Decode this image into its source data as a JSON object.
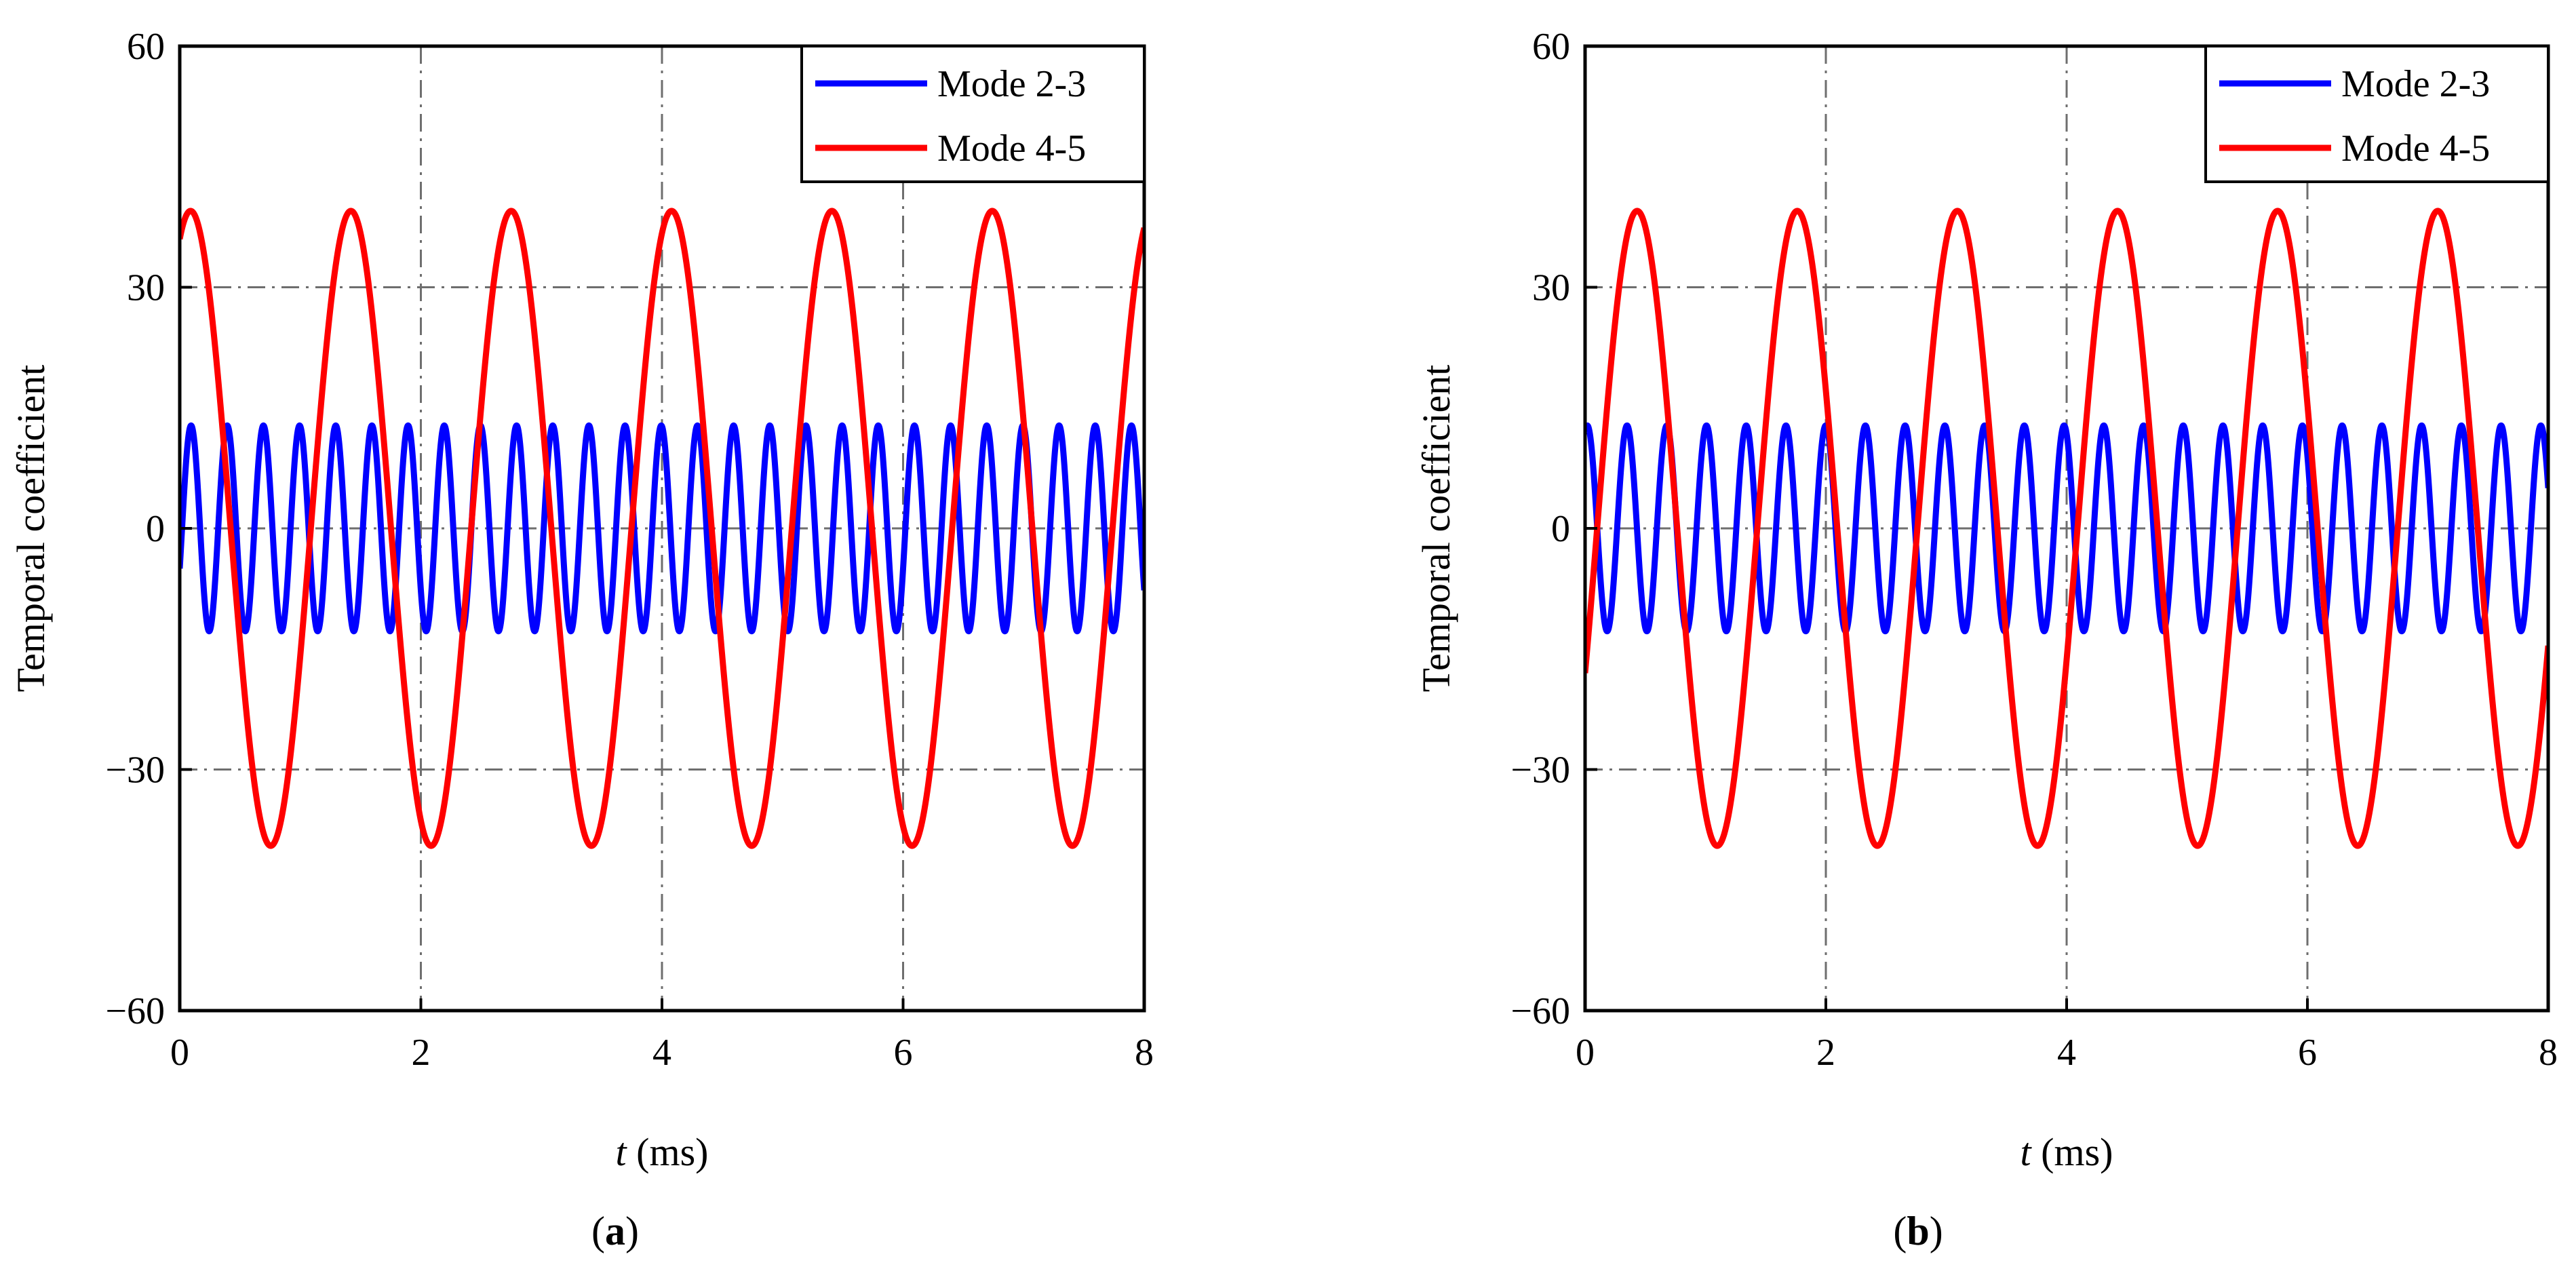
{
  "chart_data": [
    {
      "type": "line",
      "panel_label": "a",
      "xlabel_italic": "t",
      "xlabel_unit": " (ms)",
      "ylabel": "Temporal coefficient",
      "xlim": [
        0,
        8
      ],
      "ylim": [
        -60,
        60
      ],
      "xticks": [
        0,
        2,
        4,
        6,
        8
      ],
      "yticks": [
        -60,
        -30,
        0,
        30,
        60
      ],
      "ytick_labels": [
        "−60",
        "−30",
        "0",
        "30",
        "60"
      ],
      "grid": "dash-dot",
      "legend_position": "top-right",
      "series": [
        {
          "name": "Mode 2-3",
          "color": "#0000ff",
          "waveform": "sine",
          "amplitude": 12.8,
          "period_ms": 0.3,
          "value_at_t0": -5
        },
        {
          "name": "Mode 4-5",
          "color": "#ff0000",
          "waveform": "sine",
          "amplitude": 39.5,
          "period_ms": 1.33,
          "value_at_t0": 36
        }
      ]
    },
    {
      "type": "line",
      "panel_label": "b",
      "xlabel_italic": "t",
      "xlabel_unit": " (ms)",
      "ylabel": "Temporal coefficient",
      "xlim": [
        0,
        8
      ],
      "ylim": [
        -60,
        60
      ],
      "xticks": [
        0,
        2,
        4,
        6,
        8
      ],
      "yticks": [
        -60,
        -30,
        0,
        30,
        60
      ],
      "ytick_labels": [
        "−60",
        "−30",
        "0",
        "30",
        "60"
      ],
      "grid": "dash-dot",
      "legend_position": "top-right",
      "series": [
        {
          "name": "Mode 2-3",
          "color": "#0000ff",
          "waveform": "sine",
          "amplitude": 12.8,
          "period_ms": 0.33,
          "value_at_t0": 12
        },
        {
          "name": "Mode 4-5",
          "color": "#ff0000",
          "waveform": "sine",
          "amplitude": 39.5,
          "period_ms": 1.33,
          "value_at_t0": -18
        }
      ]
    }
  ]
}
